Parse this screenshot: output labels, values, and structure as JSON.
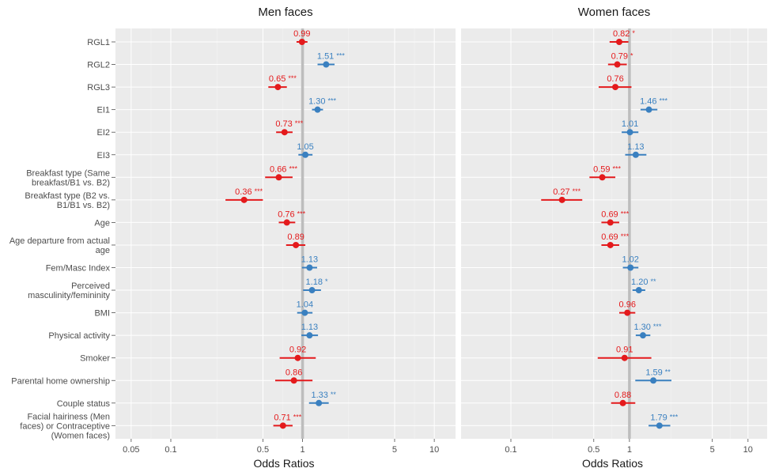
{
  "chart_data": {
    "type": "forest",
    "xscale": "log",
    "xlim": [
      0.038,
      14.5
    ],
    "reference_line": 1,
    "xlabel": "Odds Ratios",
    "colors": {
      "significant_below": "#e41a1c",
      "significant_above": "#377eb8",
      "below_one": "#e41a1c",
      "above_one": "#3a80c0",
      "refline": "#bdbdbd",
      "panel_bg": "#ebebeb",
      "grid_major": "#ffffff",
      "grid_minor": "#f4f4f4"
    },
    "categories": [
      [
        "RGL1"
      ],
      [
        "RGL2"
      ],
      [
        "RGL3"
      ],
      [
        "EI1"
      ],
      [
        "EI2"
      ],
      [
        "EI3"
      ],
      [
        "Breakfast type (Same",
        "breakfast/B1 vs. B2)"
      ],
      [
        "Breakfast type (B2 vs.",
        "B1/B1 vs. B2)"
      ],
      [
        "Age"
      ],
      [
        "Age departure from actual",
        "age"
      ],
      [
        "Fem/Masc Index"
      ],
      [
        "Perceived",
        "masculinity/femininity"
      ],
      [
        "BMI"
      ],
      [
        "Physical activity"
      ],
      [
        "Smoker"
      ],
      [
        "Parental home ownership"
      ],
      [
        "Couple status"
      ],
      [
        "Facial hairiness (Men",
        "faces) or Contraceptive",
        "(Women faces)"
      ]
    ],
    "panels": [
      {
        "title": "Men faces",
        "xticks": [
          "0.05",
          "0.1",
          "0.5",
          "1",
          "5",
          "10"
        ],
        "xtick_values": [
          0.05,
          0.1,
          0.5,
          1,
          5,
          10
        ],
        "series": [
          {
            "or": 0.99,
            "lo": 0.9,
            "hi": 1.09,
            "label": "0.99",
            "sig": ""
          },
          {
            "or": 1.51,
            "lo": 1.3,
            "hi": 1.75,
            "label": "1.51",
            "sig": "***"
          },
          {
            "or": 0.65,
            "lo": 0.55,
            "hi": 0.76,
            "label": "0.65",
            "sig": "***"
          },
          {
            "or": 1.3,
            "lo": 1.18,
            "hi": 1.43,
            "label": "1.30",
            "sig": "***"
          },
          {
            "or": 0.73,
            "lo": 0.63,
            "hi": 0.84,
            "label": "0.73",
            "sig": "***"
          },
          {
            "or": 1.05,
            "lo": 0.93,
            "hi": 1.19,
            "label": "1.05",
            "sig": ""
          },
          {
            "or": 0.66,
            "lo": 0.52,
            "hi": 0.84,
            "label": "0.66",
            "sig": "***"
          },
          {
            "or": 0.36,
            "lo": 0.26,
            "hi": 0.5,
            "label": "0.36",
            "sig": "***"
          },
          {
            "or": 0.76,
            "lo": 0.66,
            "hi": 0.88,
            "label": "0.76",
            "sig": "***"
          },
          {
            "or": 0.89,
            "lo": 0.75,
            "hi": 1.05,
            "label": "0.89",
            "sig": ""
          },
          {
            "or": 1.13,
            "lo": 0.99,
            "hi": 1.29,
            "label": "1.13",
            "sig": ""
          },
          {
            "or": 1.18,
            "lo": 1.01,
            "hi": 1.38,
            "label": "1.18",
            "sig": "*"
          },
          {
            "or": 1.04,
            "lo": 0.91,
            "hi": 1.19,
            "label": "1.04",
            "sig": ""
          },
          {
            "or": 1.13,
            "lo": 0.98,
            "hi": 1.31,
            "label": "1.13",
            "sig": ""
          },
          {
            "or": 0.92,
            "lo": 0.67,
            "hi": 1.26,
            "label": "0.92",
            "sig": ""
          },
          {
            "or": 0.86,
            "lo": 0.62,
            "hi": 1.19,
            "label": "0.86",
            "sig": ""
          },
          {
            "or": 1.33,
            "lo": 1.12,
            "hi": 1.58,
            "label": "1.33",
            "sig": "**"
          },
          {
            "or": 0.71,
            "lo": 0.6,
            "hi": 0.84,
            "label": "0.71",
            "sig": "***"
          }
        ]
      },
      {
        "title": "Women faces",
        "xticks": [
          "0.1",
          "0.5",
          "1",
          "5",
          "10"
        ],
        "xtick_values": [
          0.1,
          0.5,
          1,
          5,
          10
        ],
        "series": [
          {
            "or": 0.82,
            "lo": 0.68,
            "hi": 0.98,
            "label": "0.82",
            "sig": "*"
          },
          {
            "or": 0.79,
            "lo": 0.66,
            "hi": 0.95,
            "label": "0.79",
            "sig": "*"
          },
          {
            "or": 0.76,
            "lo": 0.55,
            "hi": 1.04,
            "label": "0.76",
            "sig": ""
          },
          {
            "or": 1.46,
            "lo": 1.24,
            "hi": 1.72,
            "label": "1.46",
            "sig": "***"
          },
          {
            "or": 1.01,
            "lo": 0.86,
            "hi": 1.19,
            "label": "1.01",
            "sig": ""
          },
          {
            "or": 1.13,
            "lo": 0.92,
            "hi": 1.39,
            "label": "1.13",
            "sig": ""
          },
          {
            "or": 0.59,
            "lo": 0.46,
            "hi": 0.76,
            "label": "0.59",
            "sig": "***"
          },
          {
            "or": 0.27,
            "lo": 0.18,
            "hi": 0.4,
            "label": "0.27",
            "sig": "***"
          },
          {
            "or": 0.69,
            "lo": 0.58,
            "hi": 0.82,
            "label": "0.69",
            "sig": "***"
          },
          {
            "or": 0.69,
            "lo": 0.58,
            "hi": 0.82,
            "label": "0.69",
            "sig": "***"
          },
          {
            "or": 1.02,
            "lo": 0.88,
            "hi": 1.19,
            "label": "1.02",
            "sig": ""
          },
          {
            "or": 1.2,
            "lo": 1.06,
            "hi": 1.36,
            "label": "1.20",
            "sig": "**"
          },
          {
            "or": 0.96,
            "lo": 0.82,
            "hi": 1.12,
            "label": "0.96",
            "sig": ""
          },
          {
            "or": 1.3,
            "lo": 1.13,
            "hi": 1.5,
            "label": "1.30",
            "sig": "***"
          },
          {
            "or": 0.91,
            "lo": 0.54,
            "hi": 1.53,
            "label": "0.91",
            "sig": ""
          },
          {
            "or": 1.59,
            "lo": 1.12,
            "hi": 2.26,
            "label": "1.59",
            "sig": "**"
          },
          {
            "or": 0.88,
            "lo": 0.7,
            "hi": 1.12,
            "label": "0.88",
            "sig": ""
          },
          {
            "or": 1.79,
            "lo": 1.45,
            "hi": 2.21,
            "label": "1.79",
            "sig": "***"
          }
        ]
      }
    ]
  }
}
